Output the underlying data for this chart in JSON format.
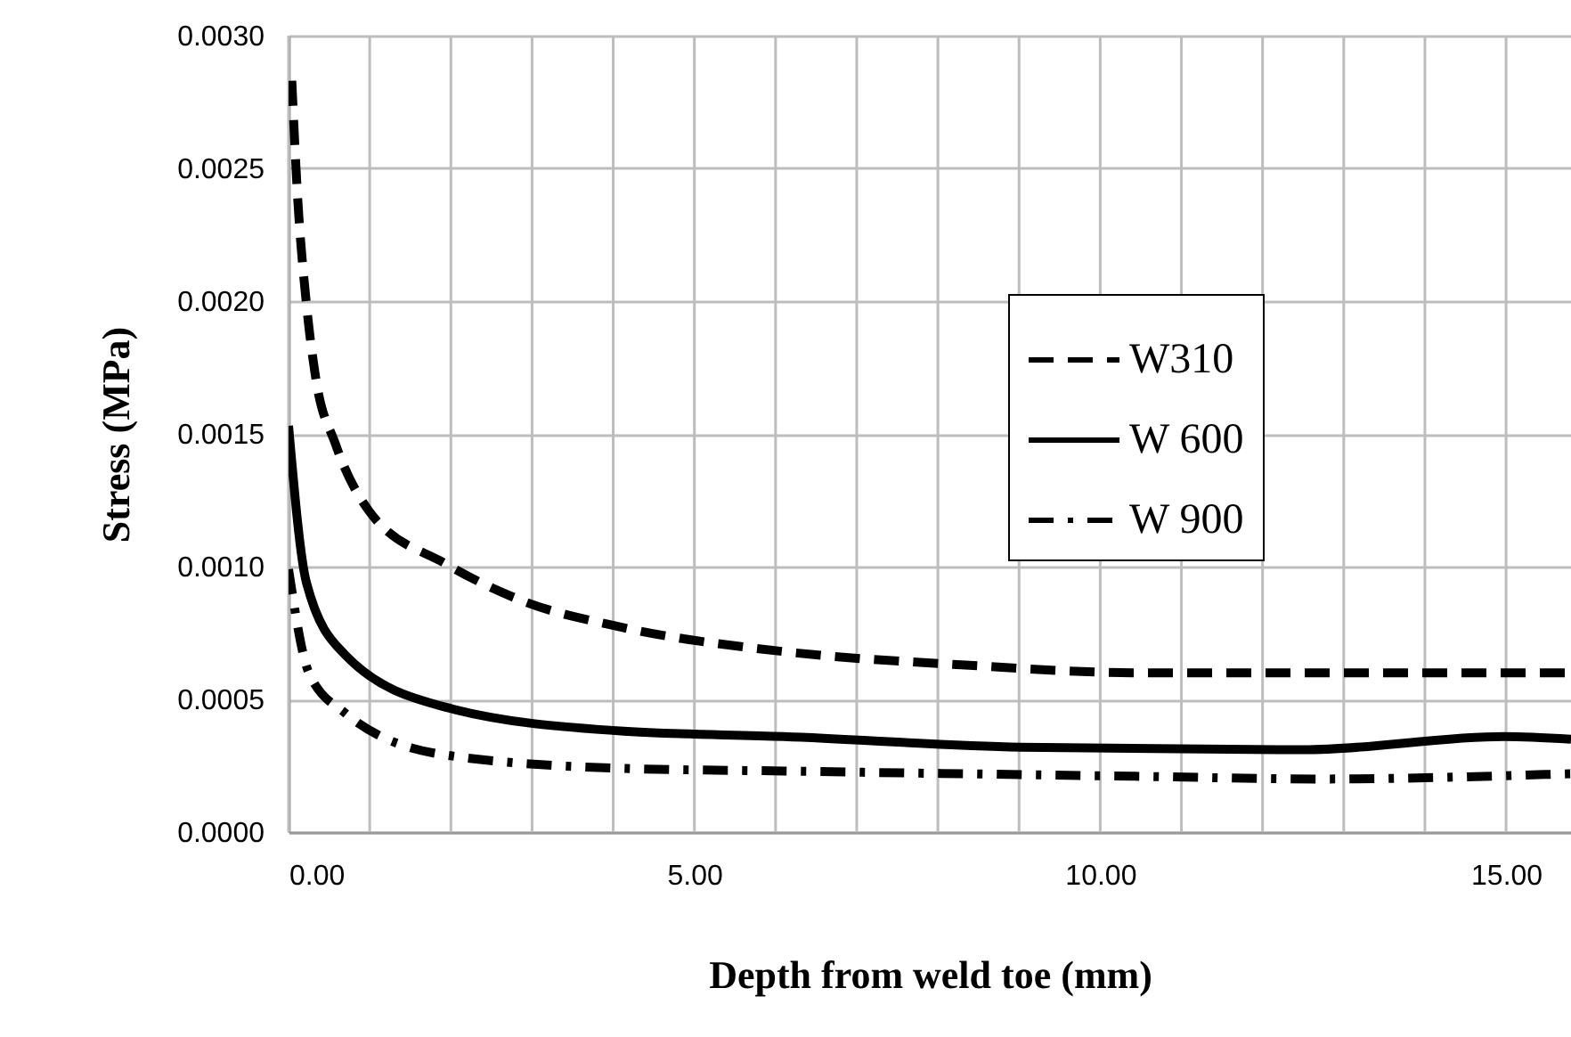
{
  "chart_data": {
    "type": "line",
    "xlabel": "Depth  from weld toe (mm)",
    "ylabel": "Stress (MPa)",
    "xlim": [
      0,
      15.8
    ],
    "xticks": [
      {
        "value": 0,
        "label": "0.00"
      },
      {
        "value": 5,
        "label": "5.00"
      },
      {
        "value": 10,
        "label": "10.00"
      },
      {
        "value": 15,
        "label": "15.00"
      }
    ],
    "ylim": [
      0,
      0.003
    ],
    "yticks": [
      {
        "value": 0,
        "label": "0.0000"
      },
      {
        "value": 0.0005,
        "label": "0.0005"
      },
      {
        "value": 0.001,
        "label": "0.0010"
      },
      {
        "value": 0.0015,
        "label": "0.0015"
      },
      {
        "value": 0.002,
        "label": "0.0020"
      },
      {
        "value": 0.0025,
        "label": "0.0025"
      },
      {
        "value": 0.003,
        "label": "0.0030"
      }
    ],
    "grid": true,
    "legend": "right",
    "marker": "none",
    "series": [
      {
        "name": "W310",
        "color": "#000000",
        "line_style": "dashed",
        "x": [
          0.04,
          0.11,
          0.22,
          0.33,
          0.58,
          0.99,
          1.94,
          2.89,
          4.13,
          6.1,
          8.29,
          10.48,
          13.5,
          15.8
        ],
        "values": [
          0.00283,
          0.0024,
          0.00199,
          0.00172,
          0.00146,
          0.00121,
          0.00101,
          0.00087,
          0.00077,
          0.00068,
          0.00063,
          0.0006,
          0.0006,
          0.0006
        ]
      },
      {
        "name": "W 600",
        "color": "#000000",
        "line_style": "solid",
        "x": [
          0,
          0.22,
          0.69,
          1.94,
          4.13,
          6.1,
          9.02,
          12.5,
          14.98,
          15.8
        ],
        "values": [
          0.00153,
          0.00094,
          0.00067,
          0.00047,
          0.00038,
          0.00036,
          0.00032,
          0.00031,
          0.00036,
          0.00035
        ]
      },
      {
        "name": "W 900",
        "color": "#000000",
        "line_style": "dashdot",
        "x": [
          0,
          0.25,
          0.69,
          1.94,
          4.13,
          6.1,
          10.48,
          12.68,
          15.8
        ],
        "values": [
          0.00099,
          0.0006,
          0.00045,
          0.00029,
          0.00024,
          0.00023,
          0.00021,
          0.0002,
          0.00022
        ]
      }
    ]
  }
}
